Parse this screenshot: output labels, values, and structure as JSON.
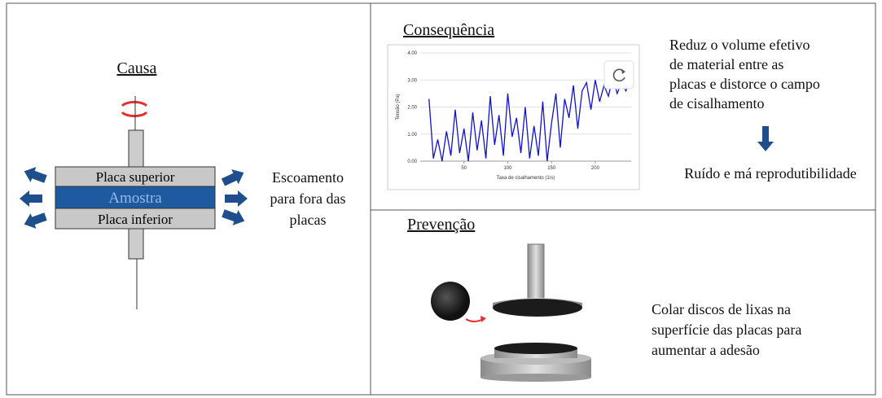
{
  "cause": {
    "title": "Causa",
    "top_plate": "Placa superior",
    "sample": "Amostra",
    "bottom_plate": "Placa inferior",
    "description": [
      "Escoamento",
      "para fora das",
      "placas"
    ]
  },
  "consequence": {
    "title": "Consequência",
    "chart": {
      "type": "line",
      "ylabel": "Tensão (Pa)",
      "xlabel": "Taxa de cisalhamento (1/s)",
      "xlim": [
        0,
        241
      ],
      "ylim": [
        0,
        4
      ],
      "xticks": [
        50,
        100,
        150,
        200
      ],
      "yticks": [
        {
          "value": 0,
          "label": "0.00"
        },
        {
          "value": 1,
          "label": "1.00"
        },
        {
          "value": 2,
          "label": "2.00"
        },
        {
          "value": 3,
          "label": "3.00"
        },
        {
          "value": 4,
          "label": "4.00"
        }
      ],
      "grid": true,
      "series": [
        {
          "color": "#1212c8",
          "x": [
            10,
            15,
            20,
            25,
            30,
            35,
            40,
            45,
            50,
            55,
            60,
            65,
            70,
            75,
            80,
            85,
            90,
            95,
            100,
            105,
            110,
            115,
            120,
            125,
            130,
            135,
            140,
            145,
            150,
            155,
            160,
            165,
            170,
            175,
            180,
            185,
            190,
            195,
            200,
            205,
            210,
            215,
            220,
            225,
            230,
            235,
            240
          ],
          "values": [
            2.3,
            0.1,
            0.8,
            0.0,
            1.1,
            0.2,
            1.9,
            0.3,
            1.2,
            0.0,
            1.8,
            0.4,
            1.5,
            0.1,
            2.4,
            0.6,
            1.7,
            0.2,
            2.5,
            0.9,
            1.6,
            0.3,
            2.0,
            0.1,
            1.3,
            0.2,
            2.2,
            0.0,
            1.4,
            2.5,
            0.5,
            2.3,
            1.6,
            2.8,
            1.2,
            2.6,
            2.9,
            1.9,
            3.0,
            2.2,
            2.8,
            2.4,
            3.1,
            2.5,
            2.9,
            2.6,
            3.0
          ]
        }
      ]
    },
    "description": [
      "Reduz o volume efetivo",
      "de material entre as",
      "placas e distorce o campo",
      "de cisalhamento"
    ],
    "result": "Ruído e má reprodutibilidade"
  },
  "prevention": {
    "title": "Prevenção",
    "description": [
      "Colar discos de lixas na",
      "superfície das placas para",
      "aumentar a adesão"
    ]
  }
}
